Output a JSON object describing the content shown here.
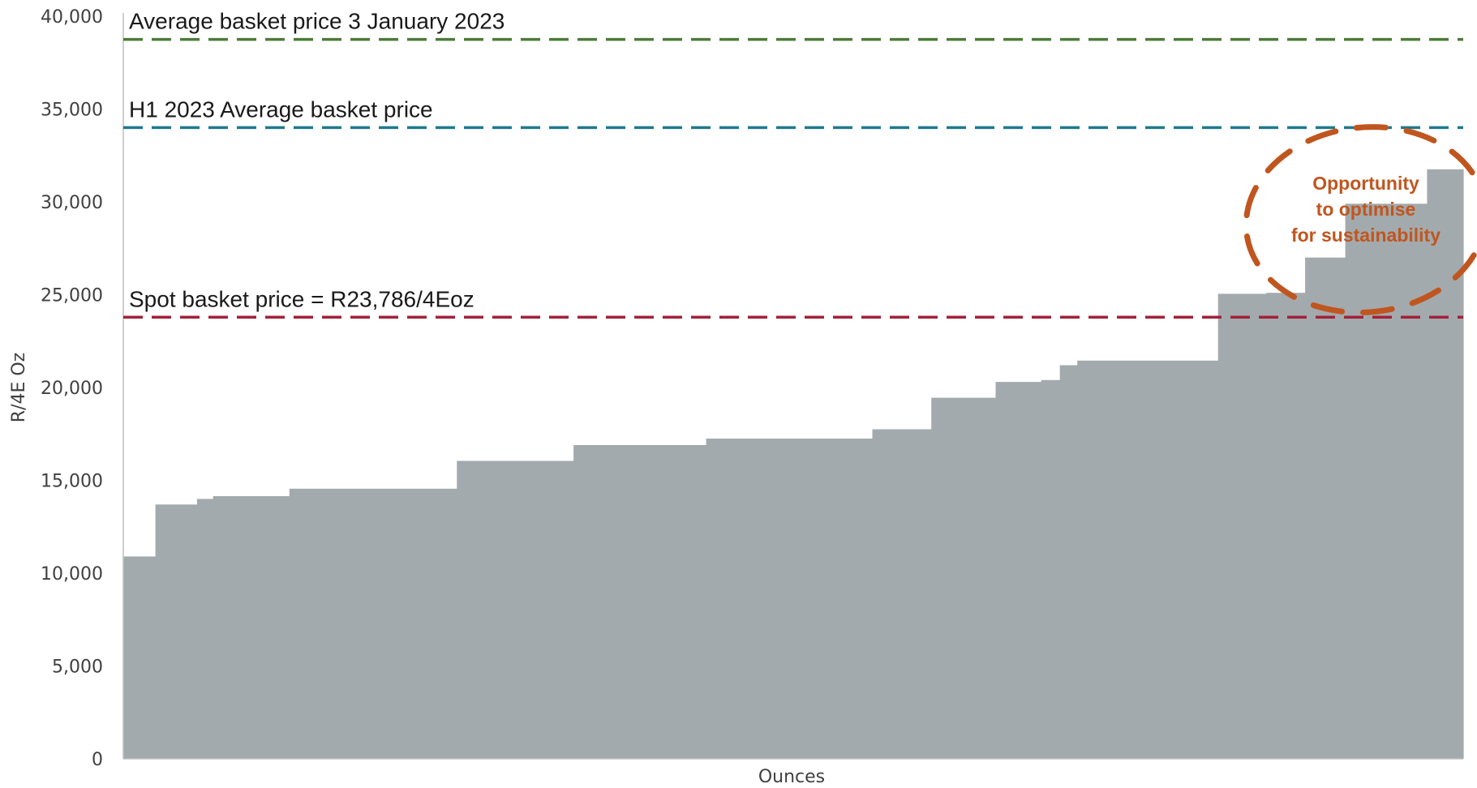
{
  "chart_data": {
    "type": "area",
    "title": "",
    "xlabel": "Ounces",
    "ylabel": "R/4E Oz",
    "ylim": [
      0,
      40000
    ],
    "yticks": [
      0,
      5000,
      10000,
      15000,
      20000,
      25000,
      30000,
      35000,
      40000
    ],
    "ytick_labels": [
      "0",
      "5,000",
      "10,000",
      "15,000",
      "20,000",
      "25,000",
      "30,000",
      "35,000",
      "40,000"
    ],
    "grid": false,
    "steps": [
      {
        "x_end": 0.024,
        "value": 10900
      },
      {
        "x_end": 0.055,
        "value": 13700
      },
      {
        "x_end": 0.067,
        "value": 14000
      },
      {
        "x_end": 0.124,
        "value": 14150
      },
      {
        "x_end": 0.249,
        "value": 14550
      },
      {
        "x_end": 0.336,
        "value": 16050
      },
      {
        "x_end": 0.435,
        "value": 16900
      },
      {
        "x_end": 0.559,
        "value": 17250
      },
      {
        "x_end": 0.603,
        "value": 17750
      },
      {
        "x_end": 0.651,
        "value": 19450
      },
      {
        "x_end": 0.685,
        "value": 20300
      },
      {
        "x_end": 0.699,
        "value": 20400
      },
      {
        "x_end": 0.712,
        "value": 21200
      },
      {
        "x_end": 0.817,
        "value": 21450
      },
      {
        "x_end": 0.853,
        "value": 25050
      },
      {
        "x_end": 0.882,
        "value": 25100
      },
      {
        "x_end": 0.912,
        "value": 27000
      },
      {
        "x_end": 0.973,
        "value": 29900
      },
      {
        "x_end": 1.0,
        "value": 31750
      }
    ],
    "reference_lines": [
      {
        "label": "Average basket price 3 January 2023",
        "value": 38750,
        "color": "#4e7a3a"
      },
      {
        "label": "H1 2023 Average basket price",
        "value": 34000,
        "color": "#1f7a8c"
      },
      {
        "label": "Spot basket price = R23,786/4Eoz",
        "value": 23786,
        "color": "#a3213a"
      }
    ],
    "annotation": {
      "lines": [
        "Opportunity",
        "to optimise",
        "for sustainability"
      ],
      "color": "#c0561f"
    },
    "bar_color": "#a3aaad",
    "axis_color": "#bfbfbf"
  }
}
